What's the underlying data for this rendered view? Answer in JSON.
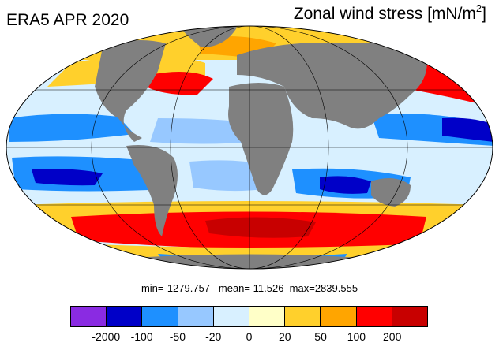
{
  "title_left": "ERA5 APR 2020",
  "title_right": {
    "text": "Zonal wind stress [mN/m",
    "sup": "2",
    "close": "]"
  },
  "stats": {
    "min_label": "min=",
    "min": "-1279.757",
    "mean_label": "mean=",
    "mean": "11.526",
    "max_label": "max=",
    "max": "2839.555"
  },
  "map": {
    "projection": "Mollweide",
    "land_color": "#808080",
    "grid_color": "#000000"
  },
  "colorbar": {
    "colors": [
      "#8a2be2",
      "#0000c8",
      "#1e90ff",
      "#97c8ff",
      "#d8f0ff",
      "#ffffc8",
      "#ffd02c",
      "#ffa500",
      "#ff0000",
      "#c80000"
    ],
    "tick_labels": [
      "-2000",
      "-100",
      "-50",
      "-20",
      "0",
      "20",
      "50",
      "100",
      "200"
    ]
  }
}
